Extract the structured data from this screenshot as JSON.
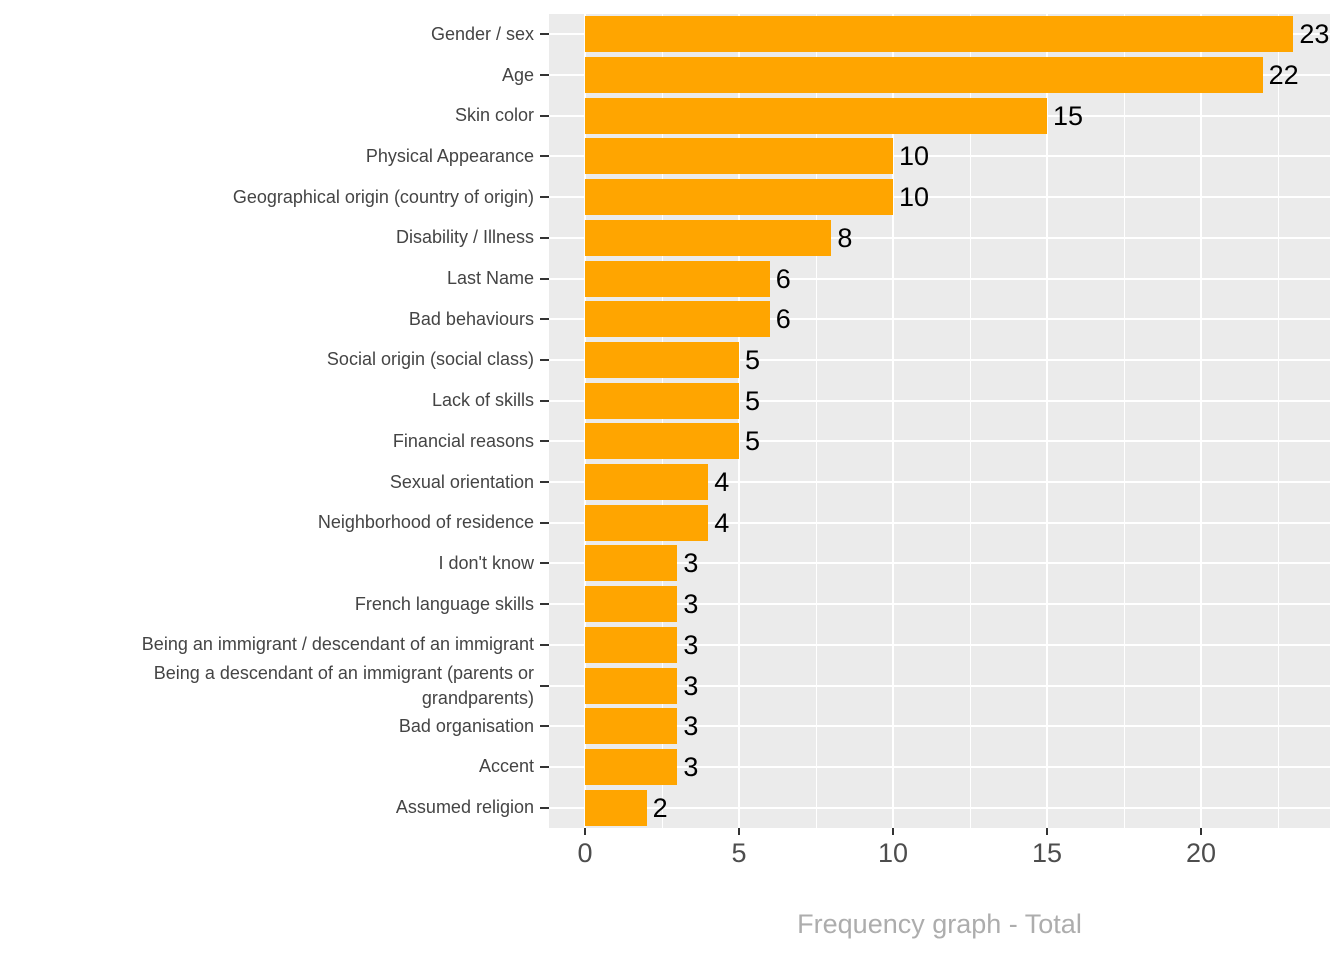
{
  "chart_data": {
    "type": "bar",
    "orientation": "horizontal",
    "title": "",
    "xlabel": "",
    "ylabel": "",
    "caption": "Frequency graph - Total",
    "categories": [
      "Gender / sex",
      "Age",
      "Skin color",
      "Physical Appearance",
      "Geographical origin (country of origin)",
      "Disability / Illness",
      "Last Name",
      "Bad behaviours",
      "Social origin (social class)",
      "Lack of skills",
      "Financial reasons",
      "Sexual orientation",
      "Neighborhood of residence",
      "I don't know",
      "French language skills",
      "Being an immigrant / descendant of an immigrant",
      "Being a descendant of an immigrant (parents or grandparents)",
      "Bad organisation",
      "Accent",
      "Assumed religion"
    ],
    "values": [
      23,
      22,
      15,
      10,
      10,
      8,
      6,
      6,
      5,
      5,
      5,
      4,
      4,
      3,
      3,
      3,
      3,
      3,
      3,
      2
    ],
    "value_labels_shown": true,
    "x_ticks": [
      0,
      5,
      10,
      15,
      20
    ],
    "x_minor_ticks": [
      2.5,
      7.5,
      12.5,
      17.5,
      22.5
    ],
    "xlim": [
      -1.2,
      24.2
    ],
    "grid": "white major and minor gridlines on gray panel",
    "legend_position": "none"
  },
  "colors": {
    "bar": "#FFA500",
    "panel_bg": "#EBEBEB",
    "grid": "#FFFFFF",
    "axis_text": "#444444",
    "x_axis_text": "#4D4D4D",
    "tick_mark": "#333333",
    "value_text": "#000000",
    "caption_text": "#ADADAD",
    "background": "#FFFFFF"
  }
}
